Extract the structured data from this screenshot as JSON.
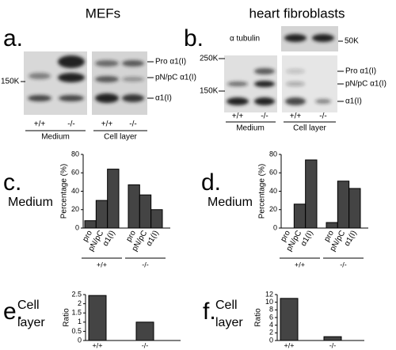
{
  "headers": [
    "MEFs",
    "heart fibroblasts"
  ],
  "blot_a": {
    "label": "a.",
    "markers": [
      "150K"
    ],
    "bands": [
      "Pro α1(I)",
      "pN/pC α1(I)",
      "α1(I)"
    ],
    "lanes": [
      "+/+",
      "-/-",
      "+/+",
      "-/-"
    ],
    "fractions": [
      "Medium",
      "Cell layer"
    ]
  },
  "blot_b": {
    "label": "b.",
    "loading": "α tubulin",
    "loading_marker": "50K",
    "markers": [
      "250K",
      "150K"
    ],
    "bands": [
      "Pro α1(I)",
      "pN/pC α1(I)",
      "α1(I)"
    ],
    "lanes": [
      "+/+",
      "-/-",
      "+/+",
      "-/-"
    ],
    "fractions": [
      "Medium",
      "Cell layer"
    ]
  },
  "chart_data": [
    {
      "type": "bar",
      "label": "c.",
      "side_label": [
        "Medium"
      ],
      "ylabel": "Percentage (%)",
      "categories": [
        "pro",
        "pN/pC",
        "α1(I)",
        "pro",
        "pN/pC",
        "α1(I)"
      ],
      "groups": [
        "+/+",
        "-/-"
      ],
      "values": [
        8,
        30,
        64,
        47,
        36,
        20
      ],
      "color": "#444444",
      "ylim": [
        0,
        80
      ],
      "yticks": [
        0,
        20,
        40,
        60,
        80
      ]
    },
    {
      "type": "bar",
      "label": "d.",
      "side_label": [
        "Medium"
      ],
      "ylabel": "Percentage (%)",
      "categories": [
        "pro",
        "pN/pC",
        "α1(I)",
        "pro",
        "pN/pC",
        "α1(I)"
      ],
      "groups": [
        "+/+",
        "-/-"
      ],
      "values": [
        0,
        26,
        74,
        6,
        51,
        43
      ],
      "color": "#444444",
      "ylim": [
        0,
        80
      ],
      "yticks": [
        0,
        20,
        40,
        60,
        80
      ]
    },
    {
      "type": "bar",
      "label": "e.",
      "side_label": [
        "Cell",
        "layer"
      ],
      "ylabel": "Ratio",
      "categories": [
        "+/+",
        "-/-"
      ],
      "values": [
        2.45,
        1.0
      ],
      "color": "#444444",
      "ylim": [
        0,
        2.5
      ],
      "yticks": [
        0,
        0.5,
        1,
        1.5,
        2,
        2.5
      ]
    },
    {
      "type": "bar",
      "label": "f.",
      "side_label": [
        "Cell",
        "layer"
      ],
      "ylabel": "Ratio",
      "categories": [
        "+/+",
        "-/-"
      ],
      "values": [
        11,
        1
      ],
      "color": "#444444",
      "ylim": [
        0,
        12
      ],
      "yticks": [
        0,
        2,
        4,
        6,
        8,
        10,
        12
      ]
    }
  ]
}
